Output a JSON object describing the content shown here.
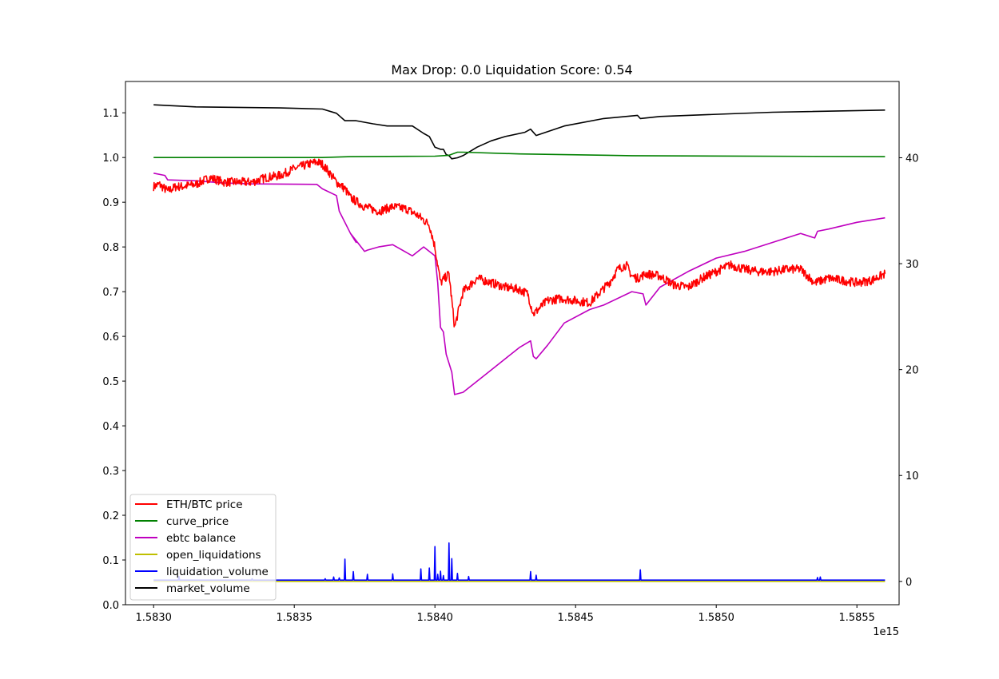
{
  "chart_data": {
    "type": "line",
    "title": "Max Drop: 0.0 Liquidation Score: 0.54",
    "x_offset_label": "1e15",
    "xlim": [
      1.5829,
      1.58565
    ],
    "x_ticks": [
      1.583,
      1.5835,
      1.584,
      1.5845,
      1.585,
      1.5855
    ],
    "x_tick_labels": [
      "1.5830",
      "1.5835",
      "1.5840",
      "1.5845",
      "1.5850",
      "1.5855"
    ],
    "left_axis": {
      "ylim": [
        0.0,
        1.17
      ],
      "ticks": [
        0.0,
        0.1,
        0.2,
        0.3,
        0.4,
        0.5,
        0.6,
        0.7,
        0.8,
        0.9,
        1.0,
        1.1
      ],
      "tick_labels": [
        "0.0",
        "0.1",
        "0.2",
        "0.3",
        "0.4",
        "0.5",
        "0.6",
        "0.7",
        "0.8",
        "0.9",
        "1.0",
        "1.1"
      ]
    },
    "right_axis": {
      "ylim": [
        -2.2,
        47.2
      ],
      "ticks": [
        0,
        10,
        20,
        30,
        40
      ],
      "tick_labels": [
        "0",
        "10",
        "20",
        "30",
        "40"
      ]
    },
    "legend_position": "lower-left",
    "series": [
      {
        "name": "ETH/BTC price",
        "color": "#ff0000",
        "axis": "left",
        "noisy": true,
        "x": [
          1.583,
          1.58302,
          1.58305,
          1.58308,
          1.5831,
          1.58315,
          1.5832,
          1.58325,
          1.5833,
          1.58335,
          1.5834,
          1.58345,
          1.5835,
          1.58355,
          1.58358,
          1.5836,
          1.58362,
          1.58365,
          1.58368,
          1.5837,
          1.58375,
          1.5838,
          1.58385,
          1.5839,
          1.58394,
          1.58398,
          1.584,
          1.58402,
          1.58405,
          1.58407,
          1.5841,
          1.58415,
          1.5842,
          1.58425,
          1.5843,
          1.58433,
          1.58435,
          1.5844,
          1.58445,
          1.5845,
          1.58455,
          1.58462,
          1.58465,
          1.58468,
          1.5847,
          1.58472,
          1.58475,
          1.5848,
          1.58485,
          1.5849,
          1.58495,
          1.585,
          1.58505,
          1.5851,
          1.58515,
          1.5852,
          1.58525,
          1.5853,
          1.58535,
          1.5854,
          1.58545,
          1.5855,
          1.58555,
          1.5856
        ],
        "values": [
          0.935,
          0.94,
          0.925,
          0.935,
          0.935,
          0.94,
          0.955,
          0.945,
          0.945,
          0.945,
          0.955,
          0.96,
          0.975,
          0.985,
          0.99,
          0.985,
          0.97,
          0.945,
          0.93,
          0.91,
          0.89,
          0.88,
          0.89,
          0.885,
          0.87,
          0.85,
          0.8,
          0.72,
          0.74,
          0.62,
          0.7,
          0.73,
          0.72,
          0.71,
          0.705,
          0.695,
          0.65,
          0.68,
          0.685,
          0.68,
          0.675,
          0.72,
          0.75,
          0.76,
          0.735,
          0.73,
          0.74,
          0.735,
          0.715,
          0.71,
          0.73,
          0.745,
          0.76,
          0.75,
          0.745,
          0.745,
          0.75,
          0.75,
          0.72,
          0.73,
          0.725,
          0.72,
          0.725,
          0.74
        ]
      },
      {
        "name": "curve_price",
        "color": "#008000",
        "axis": "left",
        "x": [
          1.583,
          1.5836,
          1.5837,
          1.584,
          1.58405,
          1.58408,
          1.5841,
          1.5843,
          1.5847,
          1.5856
        ],
        "values": [
          1.0,
          1.0,
          1.002,
          1.003,
          1.005,
          1.012,
          1.012,
          1.008,
          1.004,
          1.002
        ]
      },
      {
        "name": "ebtc balance",
        "color": "#bf00bf",
        "axis": "left",
        "x": [
          1.583,
          1.58304,
          1.58305,
          1.58315,
          1.58325,
          1.58335,
          1.58358,
          1.5836,
          1.58365,
          1.58366,
          1.5837,
          1.58372,
          1.5837,
          1.58375,
          1.58376,
          1.5838,
          1.58385,
          1.58392,
          1.58396,
          1.584,
          1.58401,
          1.58402,
          1.58403,
          1.58404,
          1.58406,
          1.58407,
          1.5841,
          1.58418,
          1.58425,
          1.5843,
          1.58434,
          1.58435,
          1.58436,
          1.5844,
          1.58446,
          1.58455,
          1.5846,
          1.5847,
          1.58474,
          1.58475,
          1.5848,
          1.5849,
          1.585,
          1.5851,
          1.5852,
          1.5853,
          1.58535,
          1.58536,
          1.5854,
          1.5855,
          1.5856
        ],
        "values": [
          0.965,
          0.96,
          0.95,
          0.948,
          0.943,
          0.941,
          0.94,
          0.93,
          0.915,
          0.88,
          0.83,
          0.81,
          0.83,
          0.79,
          0.793,
          0.8,
          0.805,
          0.78,
          0.8,
          0.78,
          0.72,
          0.62,
          0.61,
          0.56,
          0.52,
          0.47,
          0.475,
          0.515,
          0.55,
          0.575,
          0.59,
          0.555,
          0.55,
          0.58,
          0.63,
          0.66,
          0.67,
          0.7,
          0.695,
          0.67,
          0.71,
          0.745,
          0.775,
          0.79,
          0.81,
          0.83,
          0.82,
          0.835,
          0.84,
          0.855,
          0.865
        ]
      },
      {
        "name": "open_liquidations",
        "color": "#bfbf00",
        "axis": "right",
        "x": [
          1.583,
          1.5856
        ],
        "values": [
          0,
          0
        ]
      },
      {
        "name": "liquidation_volume",
        "color": "#0000ff",
        "axis": "left",
        "baseline": 0.055,
        "spikes": [
          {
            "x": 1.58309,
            "value": 0.063
          },
          {
            "x": 1.58335,
            "value": 0.058
          },
          {
            "x": 1.58361,
            "value": 0.058
          },
          {
            "x": 1.58364,
            "value": 0.062
          },
          {
            "x": 1.58366,
            "value": 0.06
          },
          {
            "x": 1.58368,
            "value": 0.102
          },
          {
            "x": 1.58371,
            "value": 0.074
          },
          {
            "x": 1.58376,
            "value": 0.068
          },
          {
            "x": 1.58385,
            "value": 0.069
          },
          {
            "x": 1.58395,
            "value": 0.08
          },
          {
            "x": 1.58398,
            "value": 0.082
          },
          {
            "x": 1.584,
            "value": 0.13
          },
          {
            "x": 1.58401,
            "value": 0.068
          },
          {
            "x": 1.58402,
            "value": 0.075
          },
          {
            "x": 1.58403,
            "value": 0.065
          },
          {
            "x": 1.58405,
            "value": 0.138
          },
          {
            "x": 1.58406,
            "value": 0.103
          },
          {
            "x": 1.58408,
            "value": 0.07
          },
          {
            "x": 1.58412,
            "value": 0.063
          },
          {
            "x": 1.58434,
            "value": 0.074
          },
          {
            "x": 1.58436,
            "value": 0.066
          },
          {
            "x": 1.58473,
            "value": 0.078
          },
          {
            "x": 1.58536,
            "value": 0.061
          },
          {
            "x": 1.58537,
            "value": 0.062
          }
        ]
      },
      {
        "name": "market_volume",
        "color": "#000000",
        "axis": "right",
        "x": [
          1.583,
          1.58315,
          1.58345,
          1.5836,
          1.58365,
          1.58368,
          1.58372,
          1.58378,
          1.58383,
          1.58392,
          1.58396,
          1.58398,
          1.584,
          1.58402,
          1.58403,
          1.58404,
          1.58405,
          1.58406,
          1.58408,
          1.5841,
          1.58415,
          1.5842,
          1.58425,
          1.58432,
          1.58434,
          1.58436,
          1.58446,
          1.5846,
          1.58472,
          1.58473,
          1.5848,
          1.5849,
          1.5852,
          1.5856
        ],
        "values": [
          45.0,
          44.8,
          44.7,
          44.6,
          44.2,
          43.5,
          43.5,
          43.2,
          43.0,
          43.0,
          42.3,
          42.0,
          41.0,
          40.8,
          40.8,
          40.3,
          40.2,
          39.9,
          40.0,
          40.2,
          41.0,
          41.6,
          42.0,
          42.4,
          42.7,
          42.1,
          43.0,
          43.7,
          44.0,
          43.7,
          43.9,
          44.0,
          44.3,
          44.5
        ]
      }
    ]
  }
}
